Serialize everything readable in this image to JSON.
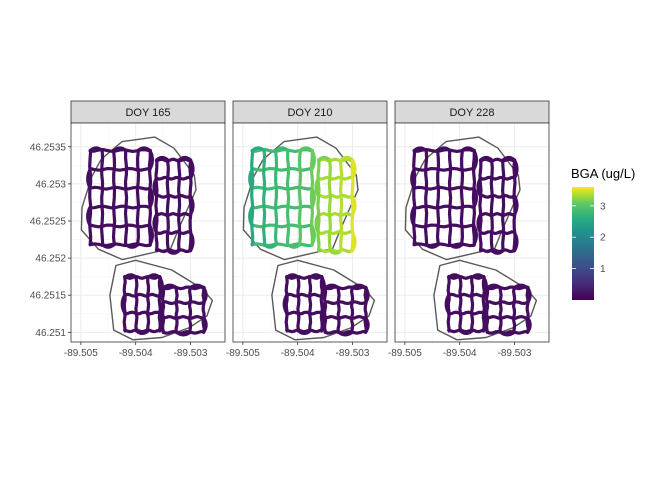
{
  "chart_data": {
    "type": "faceted-path",
    "title": "",
    "xlabel": "",
    "ylabel": "",
    "panels": [
      {
        "label": "DOY 165",
        "bga_level": 0.15
      },
      {
        "label": "DOY 210",
        "bga_level": 3.0
      },
      {
        "label": "DOY 228",
        "bga_level": 0.15
      }
    ],
    "x_ticks": [
      "-89.505",
      "-89.504",
      "-89.503"
    ],
    "x_tick_values": [
      -89.505,
      -89.504,
      -89.503
    ],
    "y_ticks": [
      "46.2535",
      "46.253",
      "46.2525",
      "46.252",
      "46.2515",
      "46.251"
    ],
    "y_tick_values": [
      46.2535,
      46.253,
      46.2525,
      46.252,
      46.2515,
      46.251
    ],
    "xlim": [
      -89.50518,
      -89.50237
    ],
    "ylim": [
      46.25087,
      46.25382
    ],
    "grid": true,
    "legend": {
      "title": "BGA (ug/L)",
      "position": "right",
      "ticks": [
        "1",
        "2",
        "3"
      ],
      "tick_values": [
        1,
        2,
        3
      ],
      "range": [
        0,
        3.6
      ],
      "colormap": "viridis"
    },
    "north_boundary": [
      [
        -89.50463,
        46.25333
      ],
      [
        -89.50425,
        46.25357
      ],
      [
        -89.50365,
        46.25363
      ],
      [
        -89.5033,
        46.25348
      ],
      [
        -89.50293,
        46.25312
      ],
      [
        -89.5029,
        46.25292
      ],
      [
        -89.50323,
        46.25237
      ],
      [
        -89.50336,
        46.25213
      ],
      [
        -89.50395,
        46.25203
      ],
      [
        -89.50424,
        46.25198
      ],
      [
        -89.50468,
        46.25212
      ],
      [
        -89.50499,
        46.25238
      ],
      [
        -89.50498,
        46.25268
      ],
      [
        -89.5048,
        46.2531
      ],
      [
        -89.50463,
        46.25333
      ]
    ],
    "south_boundary": [
      [
        -89.50436,
        46.2519
      ],
      [
        -89.504,
        46.25197
      ],
      [
        -89.50334,
        46.25184
      ],
      [
        -89.50279,
        46.25159
      ],
      [
        -89.5026,
        46.25143
      ],
      [
        -89.5027,
        46.25122
      ],
      [
        -89.50303,
        46.25106
      ],
      [
        -89.50352,
        46.25093
      ],
      [
        -89.50405,
        46.2509
      ],
      [
        -89.5044,
        46.25103
      ],
      [
        -89.50447,
        46.2515
      ],
      [
        -89.50436,
        46.2519
      ]
    ],
    "north_block_west": {
      "x": [
        -89.50483,
        -89.50374
      ],
      "y": [
        46.25218,
        46.25345
      ],
      "nx": 6,
      "ny": 6
    },
    "north_block_east": {
      "x": [
        -89.50362,
        -89.503
      ],
      "y": [
        46.2521,
        46.25332
      ],
      "nx": 4,
      "ny": 6
    },
    "south_block_west": {
      "x": [
        -89.5042,
        -89.50356
      ],
      "y": [
        46.25102,
        46.25174
      ],
      "nx": 4,
      "ny": 4
    },
    "south_block_east": {
      "x": [
        -89.5035,
        -89.50276
      ],
      "y": [
        46.251,
        46.2516
      ],
      "nx": 4,
      "ny": 4
    },
    "panel210_gradient": "west tracks ~2.6 ug/L (green), east tracks ~3.4 ug/L (yellow)",
    "colors": {
      "low": "#440154",
      "mid": "#21908c",
      "high": "#fde725",
      "panel_border": "#333333",
      "strip_fill": "#d9d9d9",
      "grid_major": "#ebebeb",
      "boundary": "#595959"
    }
  }
}
